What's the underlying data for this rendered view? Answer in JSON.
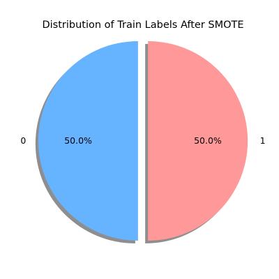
{
  "chart_data": {
    "type": "pie",
    "title": "Distribution of Train Labels After SMOTE",
    "slices": [
      {
        "label": "0",
        "value": 50.0,
        "percent_label": "50.0%",
        "color": "#66b3ff",
        "explode": 0.05
      },
      {
        "label": "1",
        "value": 50.0,
        "percent_label": "50.0%",
        "color": "#ff9999",
        "explode": 0.05
      }
    ],
    "start_angle_deg": 90,
    "counterclockwise": true,
    "shadow": true,
    "grid": false,
    "legend": "none"
  }
}
